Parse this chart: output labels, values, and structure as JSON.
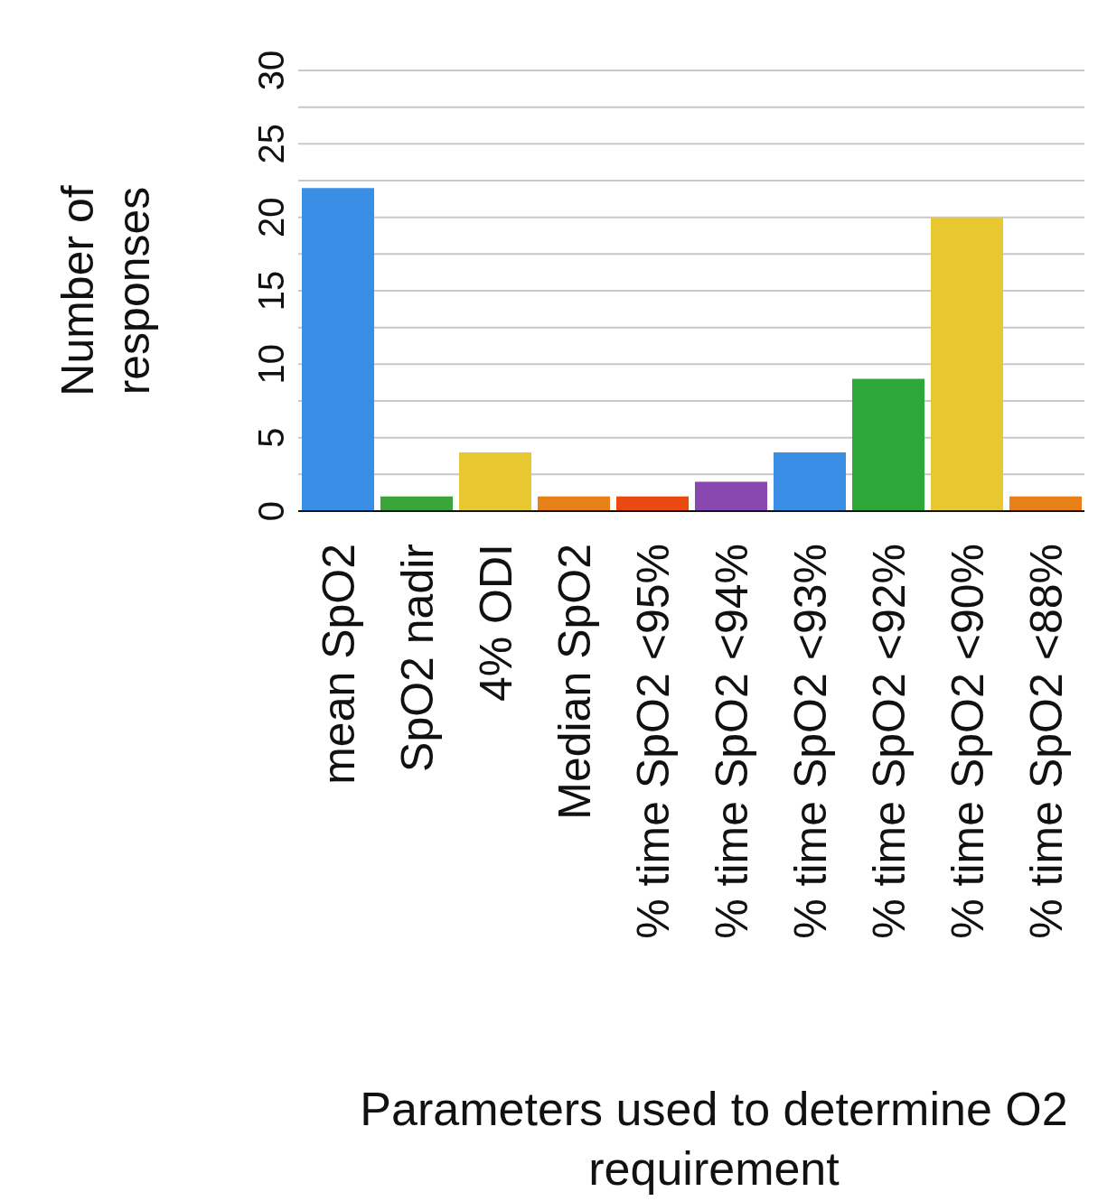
{
  "chart_data": {
    "type": "bar",
    "ylabel": "Number of responses",
    "xlabel": "Parameters used to determine O2 requirement",
    "categories": [
      "mean SpO2",
      "SpO2 nadir",
      "4% ODI",
      "Median SpO2",
      "% time SpO2 <95%",
      "% time SpO2 <94%",
      "% time SpO2 <93%",
      "% time SpO2 <92%",
      "% time SpO2 <90%",
      "% time SpO2 <88%"
    ],
    "values": [
      22,
      1,
      4,
      1,
      1,
      2,
      4,
      9,
      20,
      1
    ],
    "colors": [
      "#3a8ee6",
      "#3aa53a",
      "#e8c830",
      "#e8801a",
      "#e84a10",
      "#8848b0",
      "#3a8ee6",
      "#2ea83a",
      "#e8c830",
      "#e8801a"
    ],
    "ylim": [
      0,
      30
    ],
    "yticks": [
      0,
      {
        "value": 2.5,
        "label": null
      },
      5,
      {
        "value": 7.5,
        "label": null
      },
      10,
      {
        "value": 12.5,
        "label": null
      },
      15,
      {
        "value": 17.5,
        "label": null
      },
      20,
      {
        "value": 22.5,
        "label": null
      },
      25,
      {
        "value": 27.5,
        "label": null
      },
      30
    ],
    "grid": "y"
  }
}
